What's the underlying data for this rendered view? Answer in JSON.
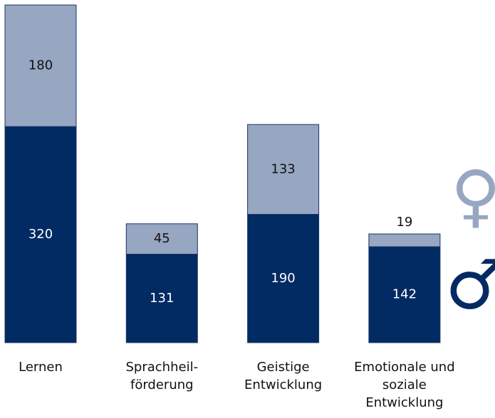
{
  "chart_data": {
    "type": "stacked_bar",
    "categories": [
      [
        "Lernen"
      ],
      [
        "Sprachheil-",
        "förderung"
      ],
      [
        "Geistige",
        "Entwicklung"
      ],
      [
        "Emotionale und",
        "soziale",
        "Entwicklung"
      ]
    ],
    "series": [
      {
        "name": "♂",
        "color": "#022a63",
        "values": [
          320,
          131,
          190,
          142
        ]
      },
      {
        "name": "♀",
        "color": "#97a6c1",
        "values": [
          180,
          45,
          133,
          19
        ]
      }
    ]
  }
}
